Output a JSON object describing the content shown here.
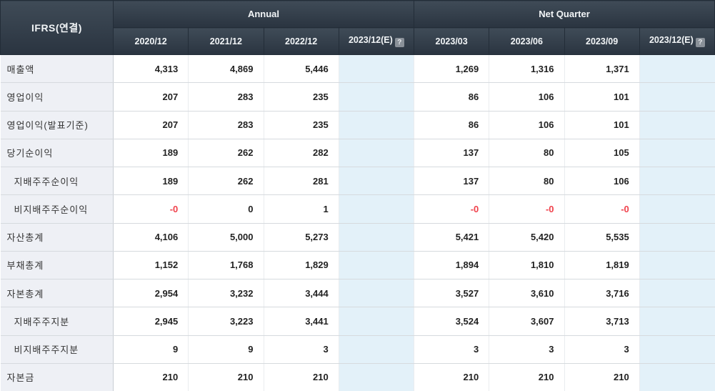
{
  "table": {
    "corner_label": "IFRS(연결)",
    "groups": [
      {
        "label": "Annual"
      },
      {
        "label": "Net Quarter"
      }
    ],
    "columns": [
      "2020/12",
      "2021/12",
      "2022/12",
      "2023/12(E)",
      "2023/03",
      "2023/06",
      "2023/09",
      "2023/12(E)"
    ],
    "estimate_columns": [
      3,
      7
    ],
    "help_icon_glyph": "?",
    "rows": [
      {
        "label": "매출액",
        "indent": false,
        "values": [
          "4,313",
          "4,869",
          "5,446",
          "",
          "1,269",
          "1,316",
          "1,371",
          ""
        ]
      },
      {
        "label": "영업이익",
        "indent": false,
        "values": [
          "207",
          "283",
          "235",
          "",
          "86",
          "106",
          "101",
          ""
        ]
      },
      {
        "label": "영업이익(발표기준)",
        "indent": false,
        "values": [
          "207",
          "283",
          "235",
          "",
          "86",
          "106",
          "101",
          ""
        ]
      },
      {
        "label": "당기순이익",
        "indent": false,
        "values": [
          "189",
          "262",
          "282",
          "",
          "137",
          "80",
          "105",
          ""
        ]
      },
      {
        "label": "지배주주순이익",
        "indent": true,
        "values": [
          "189",
          "262",
          "281",
          "",
          "137",
          "80",
          "106",
          ""
        ]
      },
      {
        "label": "비지배주주순이익",
        "indent": true,
        "values": [
          "-0",
          "0",
          "1",
          "",
          "-0",
          "-0",
          "-0",
          ""
        ]
      },
      {
        "label": "자산총계",
        "indent": false,
        "values": [
          "4,106",
          "5,000",
          "5,273",
          "",
          "5,421",
          "5,420",
          "5,535",
          ""
        ]
      },
      {
        "label": "부채총계",
        "indent": false,
        "values": [
          "1,152",
          "1,768",
          "1,829",
          "",
          "1,894",
          "1,810",
          "1,819",
          ""
        ]
      },
      {
        "label": "자본총계",
        "indent": false,
        "values": [
          "2,954",
          "3,232",
          "3,444",
          "",
          "3,527",
          "3,610",
          "3,716",
          ""
        ]
      },
      {
        "label": "지배주주지분",
        "indent": true,
        "values": [
          "2,945",
          "3,223",
          "3,441",
          "",
          "3,524",
          "3,607",
          "3,713",
          ""
        ]
      },
      {
        "label": "비지배주주지분",
        "indent": true,
        "values": [
          "9",
          "9",
          "3",
          "",
          "3",
          "3",
          "3",
          ""
        ]
      },
      {
        "label": "자본금",
        "indent": false,
        "values": [
          "210",
          "210",
          "210",
          "",
          "210",
          "210",
          "210",
          ""
        ]
      }
    ],
    "colors": {
      "header_bg_top": "#3f4b57",
      "header_bg_bottom": "#2a3440",
      "header_text": "#f2f5f7",
      "label_column_bg": "#eef0f5",
      "estimate_column_bg": "#e3f1f9",
      "negative_value": "#f0414b",
      "value_text": "#222222"
    }
  }
}
